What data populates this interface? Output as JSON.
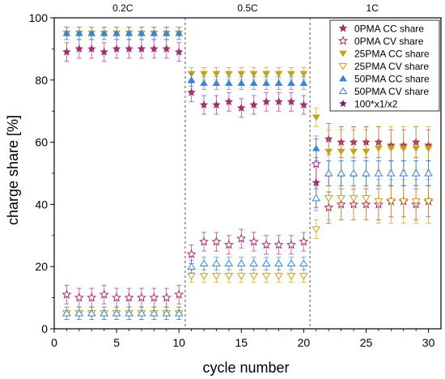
{
  "chart_data": {
    "type": "scatter",
    "xlabel": "cycle number",
    "ylabel": "charge share [%]",
    "xlim": [
      0,
      31
    ],
    "ylim": [
      0,
      100
    ],
    "xticks": [
      0,
      5,
      10,
      15,
      20,
      25,
      30
    ],
    "yticks": [
      0,
      20,
      40,
      60,
      80,
      100
    ],
    "grid": false,
    "legend_position": "top-right",
    "annotations": [
      {
        "text": "0.2C",
        "x": 5.5
      },
      {
        "text": "0.5C",
        "x": 15.5
      },
      {
        "text": "1C",
        "x": 25.5
      }
    ],
    "dividers": [
      10.5,
      20.5
    ],
    "colors": {
      "pma0": "#a0306e",
      "pma25": "#c8a215",
      "pma50": "#3a84d6",
      "ratio": "#7a1b6a"
    },
    "x": [
      1,
      2,
      3,
      4,
      5,
      6,
      7,
      8,
      9,
      10,
      11,
      12,
      13,
      14,
      15,
      16,
      17,
      18,
      19,
      20,
      21,
      22,
      23,
      24,
      25,
      26,
      27,
      28,
      29,
      30
    ],
    "series": [
      {
        "name": "0PMA CC share",
        "color": "#a0306e",
        "marker": "star",
        "filled": true,
        "values": [
          89,
          90,
          90,
          89,
          90,
          90,
          90,
          90,
          90,
          89,
          76,
          72,
          72,
          73,
          71,
          72,
          73,
          73,
          73,
          72,
          47,
          61,
          60,
          60,
          60,
          60,
          59,
          59,
          60,
          59
        ],
        "errors": [
          3,
          3,
          3,
          3,
          3,
          3,
          3,
          3,
          3,
          3,
          3,
          3,
          3,
          3,
          3,
          3,
          3,
          3,
          3,
          3,
          8,
          5,
          5,
          5,
          5,
          5,
          5,
          5,
          5,
          5
        ]
      },
      {
        "name": "0PMA CV share",
        "color": "#a0306e",
        "marker": "star",
        "filled": false,
        "values": [
          11,
          10,
          10,
          11,
          10,
          10,
          10,
          10,
          10,
          11,
          24,
          28,
          28,
          27,
          29,
          28,
          27,
          27,
          27,
          28,
          53,
          39,
          40,
          40,
          40,
          40,
          41,
          41,
          40,
          41
        ],
        "errors": [
          3,
          3,
          3,
          3,
          3,
          3,
          3,
          3,
          3,
          3,
          3,
          3,
          3,
          3,
          3,
          3,
          3,
          3,
          3,
          3,
          8,
          5,
          5,
          5,
          5,
          5,
          5,
          5,
          5,
          5
        ]
      },
      {
        "name": "25PMA CC share",
        "color": "#c8a215",
        "marker": "triangle-down",
        "filled": true,
        "values": [
          95,
          95,
          95,
          95,
          95,
          95,
          95,
          95,
          95,
          95,
          82,
          82,
          82,
          82,
          82,
          82,
          82,
          82,
          82,
          82,
          68,
          57,
          57,
          57,
          57,
          58,
          58,
          58,
          58,
          58
        ],
        "errors": [
          2,
          2,
          2,
          2,
          2,
          2,
          2,
          2,
          2,
          2,
          2,
          2,
          2,
          2,
          2,
          2,
          2,
          2,
          2,
          2,
          3,
          7,
          7,
          7,
          7,
          7,
          7,
          7,
          7,
          7
        ]
      },
      {
        "name": "25PMA CV share",
        "color": "#c8a215",
        "marker": "triangle-down",
        "filled": false,
        "values": [
          5,
          5,
          5,
          5,
          5,
          5,
          5,
          5,
          5,
          5,
          17,
          17,
          17,
          17,
          17,
          17,
          17,
          17,
          17,
          17,
          32,
          42,
          42,
          42,
          42,
          41,
          41,
          41,
          41,
          41
        ],
        "errors": [
          2,
          2,
          2,
          2,
          2,
          2,
          2,
          2,
          2,
          2,
          2,
          2,
          2,
          2,
          2,
          2,
          2,
          2,
          2,
          2,
          3,
          7,
          7,
          7,
          7,
          7,
          7,
          7,
          7,
          7
        ]
      },
      {
        "name": "50PMA CC share",
        "color": "#3a84d6",
        "marker": "triangle-up",
        "filled": true,
        "values": [
          95,
          95,
          95,
          95,
          95,
          95,
          95,
          95,
          95,
          95,
          80,
          79,
          79,
          79,
          79,
          79,
          79,
          79,
          79,
          79,
          58,
          50,
          50,
          50,
          50,
          50,
          50,
          50,
          50,
          50
        ],
        "errors": [
          2,
          2,
          2,
          2,
          2,
          2,
          2,
          2,
          2,
          2,
          2,
          2,
          2,
          2,
          2,
          2,
          2,
          2,
          2,
          2,
          4,
          4,
          4,
          4,
          4,
          4,
          4,
          4,
          4,
          4
        ]
      },
      {
        "name": "50PMA CV share",
        "color": "#3a84d6",
        "marker": "triangle-up",
        "filled": false,
        "values": [
          5,
          5,
          5,
          5,
          5,
          5,
          5,
          5,
          5,
          5,
          20,
          21,
          21,
          21,
          21,
          21,
          21,
          21,
          21,
          21,
          42,
          50,
          50,
          50,
          50,
          50,
          50,
          50,
          50,
          50
        ],
        "errors": [
          2,
          2,
          2,
          2,
          2,
          2,
          2,
          2,
          2,
          2,
          2,
          2,
          2,
          2,
          2,
          2,
          2,
          2,
          2,
          2,
          4,
          4,
          4,
          4,
          4,
          4,
          4,
          4,
          4,
          4
        ]
      },
      {
        "name": "100*x1/x2",
        "color": "#7a1b6a",
        "marker": "star-small",
        "filled": true,
        "values": [
          null,
          null,
          null,
          null,
          null,
          null,
          null,
          null,
          null,
          null,
          null,
          null,
          null,
          null,
          null,
          null,
          null,
          null,
          null,
          null,
          null,
          null,
          null,
          null,
          null,
          null,
          null,
          null,
          null,
          null
        ]
      }
    ]
  }
}
